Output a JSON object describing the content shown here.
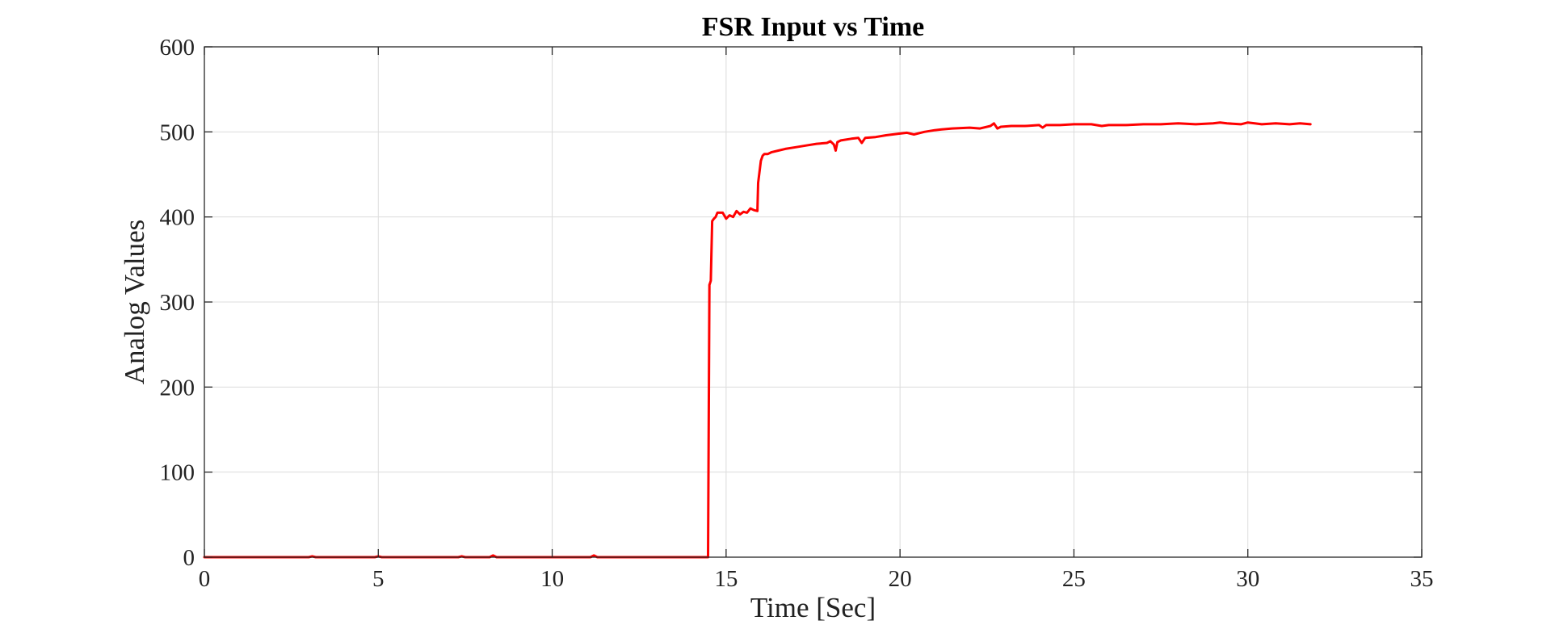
{
  "chart_data": {
    "type": "line",
    "title": "FSR Input vs Time",
    "xlabel": "Time [Sec]",
    "ylabel": "Analog Values",
    "xlim": [
      0,
      35
    ],
    "ylim": [
      0,
      600
    ],
    "xticks": [
      0,
      5,
      10,
      15,
      20,
      25,
      30,
      35
    ],
    "yticks": [
      0,
      100,
      200,
      300,
      400,
      500,
      600
    ],
    "grid": true,
    "series": [
      {
        "color": "#ff0000",
        "x": [
          0,
          3.0,
          3.1,
          3.2,
          4.9,
          5.0,
          5.1,
          7.3,
          7.4,
          7.5,
          8.2,
          8.3,
          8.4,
          11.1,
          11.2,
          11.3,
          14.48,
          14.52,
          14.56,
          14.6,
          14.65,
          14.7,
          14.75,
          14.8,
          14.9,
          15.0,
          15.1,
          15.2,
          15.3,
          15.4,
          15.5,
          15.6,
          15.7,
          15.8,
          15.9,
          15.92,
          16.0,
          16.05,
          16.1,
          16.2,
          16.3,
          16.5,
          16.7,
          17.0,
          17.3,
          17.6,
          17.9,
          18.0,
          18.1,
          18.15,
          18.2,
          18.3,
          18.6,
          18.8,
          18.9,
          19.0,
          19.3,
          19.6,
          20.0,
          20.2,
          20.4,
          20.7,
          21.0,
          21.2,
          21.5,
          22.0,
          22.3,
          22.6,
          22.7,
          22.8,
          22.9,
          23.2,
          23.6,
          24.0,
          24.1,
          24.2,
          24.6,
          25.0,
          25.5,
          25.8,
          26.0,
          26.5,
          27.0,
          27.5,
          28.0,
          28.5,
          29.0,
          29.2,
          29.4,
          29.8,
          30.0,
          30.2,
          30.4,
          30.8,
          31.2,
          31.5,
          31.8
        ],
        "y": [
          0,
          0,
          1,
          0,
          0,
          1,
          0,
          0,
          1,
          0,
          0,
          2,
          0,
          0,
          2,
          0,
          0,
          320,
          325,
          395,
          398,
          400,
          405,
          405,
          405,
          398,
          402,
          400,
          407,
          403,
          406,
          405,
          410,
          408,
          407,
          440,
          466,
          472,
          474,
          474,
          476,
          478,
          480,
          482,
          484,
          486,
          487,
          489,
          485,
          478,
          488,
          490,
          492,
          493,
          487,
          493,
          494,
          496,
          498,
          499,
          497,
          500,
          502,
          503,
          504,
          505,
          504,
          507,
          510,
          504,
          506,
          507,
          507,
          508,
          505,
          508,
          508,
          509,
          509,
          507,
          508,
          508,
          509,
          509,
          510,
          509,
          510,
          511,
          510,
          509,
          511,
          510,
          509,
          510,
          509,
          510,
          509
        ]
      }
    ]
  }
}
